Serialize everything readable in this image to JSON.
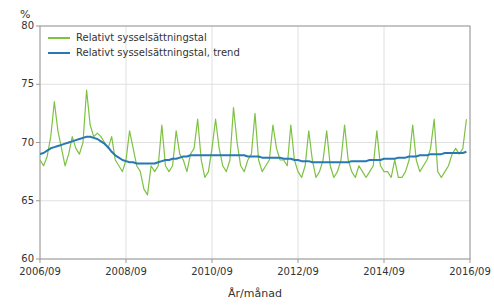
{
  "chart_data": {
    "type": "line",
    "xlabel": "År/månad",
    "ylabel": "%",
    "grid": true,
    "legend": "upper left",
    "x": [
      0,
      1,
      2,
      3,
      4,
      5,
      6,
      7,
      8,
      9,
      10,
      11,
      12,
      13,
      14,
      15,
      16,
      17,
      18,
      19,
      20,
      21,
      22,
      23,
      24,
      25,
      26,
      27,
      28,
      29,
      30,
      31,
      32,
      33,
      34,
      35,
      36,
      37,
      38,
      39,
      40,
      41,
      42,
      43,
      44,
      45,
      46,
      47,
      48,
      49,
      50,
      51,
      52,
      53,
      54,
      55,
      56,
      57,
      58,
      59,
      60,
      61,
      62,
      63,
      64,
      65,
      66,
      67,
      68,
      69,
      70,
      71,
      72,
      73,
      74,
      75,
      76,
      77,
      78,
      79,
      80,
      81,
      82,
      83,
      84,
      85,
      86,
      87,
      88,
      89,
      90,
      91,
      92,
      93,
      94,
      95,
      96,
      97,
      98,
      99,
      100,
      101,
      102,
      103,
      104,
      105,
      106,
      107,
      108,
      109,
      110,
      111,
      112,
      113,
      114,
      115,
      116,
      117,
      118,
      119
    ],
    "xlim": [
      0,
      120
    ],
    "xticks": [
      {
        "value": 0,
        "label": "2006/09"
      },
      {
        "value": 24,
        "label": "2008/09"
      },
      {
        "value": 48,
        "label": "2010/09"
      },
      {
        "value": 72,
        "label": "2012/09"
      },
      {
        "value": 96,
        "label": "2014/09"
      },
      {
        "value": 120,
        "label": "2016/09"
      }
    ],
    "ylim": [
      60,
      80
    ],
    "yticks": [
      60,
      65,
      70,
      75,
      80
    ],
    "series": [
      {
        "name": "Relativt sysselsättningstal",
        "color": "#7dc242",
        "values": [
          68.5,
          68.0,
          68.8,
          70.5,
          73.5,
          71.0,
          69.5,
          68.0,
          69.0,
          70.5,
          69.5,
          69.0,
          70.0,
          74.5,
          71.5,
          70.5,
          70.8,
          70.5,
          70.0,
          69.5,
          70.5,
          68.5,
          68.0,
          67.5,
          68.5,
          71.0,
          69.5,
          68.0,
          67.5,
          66.0,
          65.5,
          68.0,
          67.5,
          68.0,
          71.5,
          68.0,
          67.5,
          68.0,
          71.0,
          69.0,
          68.5,
          67.5,
          69.0,
          69.5,
          72.0,
          68.5,
          67.0,
          67.5,
          69.5,
          72.0,
          69.5,
          68.0,
          67.5,
          68.5,
          73.0,
          70.0,
          68.0,
          67.5,
          68.5,
          69.0,
          72.5,
          68.5,
          67.5,
          68.0,
          68.5,
          71.5,
          69.5,
          68.5,
          68.5,
          68.0,
          71.5,
          68.5,
          67.5,
          67.0,
          68.0,
          71.0,
          68.5,
          67.0,
          67.5,
          68.5,
          71.0,
          68.0,
          67.0,
          67.5,
          68.5,
          71.5,
          68.5,
          67.5,
          67.0,
          68.0,
          67.5,
          67.0,
          67.5,
          68.0,
          71.0,
          68.0,
          67.5,
          67.5,
          67.0,
          68.5,
          67.0,
          67.0,
          67.5,
          68.5,
          71.5,
          68.5,
          67.5,
          68.0,
          68.5,
          69.5,
          72.0,
          67.5,
          67.0,
          67.5,
          68.0,
          69.0,
          69.5,
          69.0,
          69.5,
          72.0
        ]
      },
      {
        "name": "Relativt sysselsättningstal, trend",
        "color": "#2778b4",
        "values": [
          69.0,
          69.1,
          69.3,
          69.5,
          69.6,
          69.7,
          69.8,
          69.9,
          70.0,
          70.1,
          70.2,
          70.3,
          70.4,
          70.5,
          70.5,
          70.4,
          70.3,
          70.1,
          69.9,
          69.6,
          69.2,
          68.9,
          68.7,
          68.5,
          68.4,
          68.3,
          68.3,
          68.2,
          68.2,
          68.2,
          68.2,
          68.2,
          68.2,
          68.3,
          68.4,
          68.5,
          68.5,
          68.6,
          68.6,
          68.7,
          68.8,
          68.8,
          68.9,
          68.9,
          68.9,
          68.9,
          68.9,
          68.9,
          68.9,
          68.9,
          68.9,
          68.9,
          68.9,
          68.9,
          68.9,
          68.9,
          68.9,
          68.9,
          68.8,
          68.8,
          68.8,
          68.8,
          68.7,
          68.7,
          68.7,
          68.7,
          68.7,
          68.7,
          68.6,
          68.6,
          68.6,
          68.5,
          68.5,
          68.4,
          68.4,
          68.4,
          68.3,
          68.3,
          68.3,
          68.3,
          68.3,
          68.3,
          68.3,
          68.3,
          68.3,
          68.3,
          68.3,
          68.4,
          68.4,
          68.4,
          68.4,
          68.4,
          68.5,
          68.5,
          68.5,
          68.5,
          68.6,
          68.6,
          68.6,
          68.6,
          68.7,
          68.7,
          68.7,
          68.8,
          68.8,
          68.8,
          68.9,
          68.9,
          68.9,
          69.0,
          69.0,
          69.0,
          69.0,
          69.1,
          69.1,
          69.1,
          69.1,
          69.1,
          69.1,
          69.2
        ]
      }
    ]
  }
}
